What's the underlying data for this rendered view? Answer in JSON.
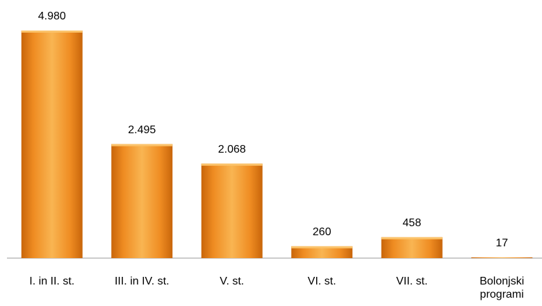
{
  "chart_data": {
    "type": "bar",
    "categories": [
      "I. in II. st.",
      "III. in IV. st.",
      "V. st.",
      "VI. st.",
      "VII. st.",
      "Bolonjski programi"
    ],
    "values": [
      4980,
      2495,
      2068,
      260,
      458,
      17
    ],
    "value_labels": [
      "4.980",
      "2.495",
      "2.068",
      "260",
      "458",
      "17"
    ],
    "color": "#f0922a"
  }
}
